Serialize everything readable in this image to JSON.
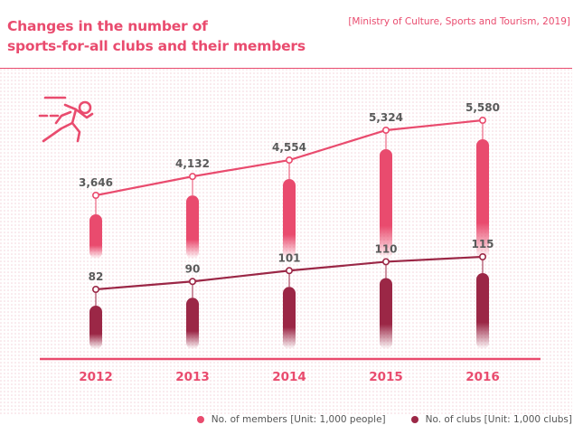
{
  "page": {
    "title_line1": "Changes in the number of",
    "title_line2": "sports-for-all clubs and their members",
    "source": "[Ministry of Culture, Sports and Tourism, 2019]"
  },
  "colors": {
    "accent": "#e94b6e",
    "members": "#e94b6e",
    "clubs": "#9b2746",
    "title": "#e94b6e",
    "year_labels": "#e94b6e",
    "background_dots": "#f3d3da"
  },
  "icon": "running-person-icon",
  "chart_data": {
    "type": "line",
    "categories": [
      "2012",
      "2013",
      "2014",
      "2015",
      "2016"
    ],
    "series": [
      {
        "name": "No. of members [Unit: 1,000 people]",
        "values": [
          3646,
          4132,
          4554,
          5324,
          5580
        ],
        "labels": [
          "3,646",
          "4,132",
          "4,554",
          "5,324",
          "5,580"
        ]
      },
      {
        "name": "No. of clubs [Unit: 1,000 clubs]",
        "values": [
          82,
          90,
          101,
          110,
          115
        ],
        "labels": [
          "82",
          "90",
          "101",
          "110",
          "115"
        ]
      }
    ],
    "legend_position": "bottom-right",
    "grid": false
  }
}
